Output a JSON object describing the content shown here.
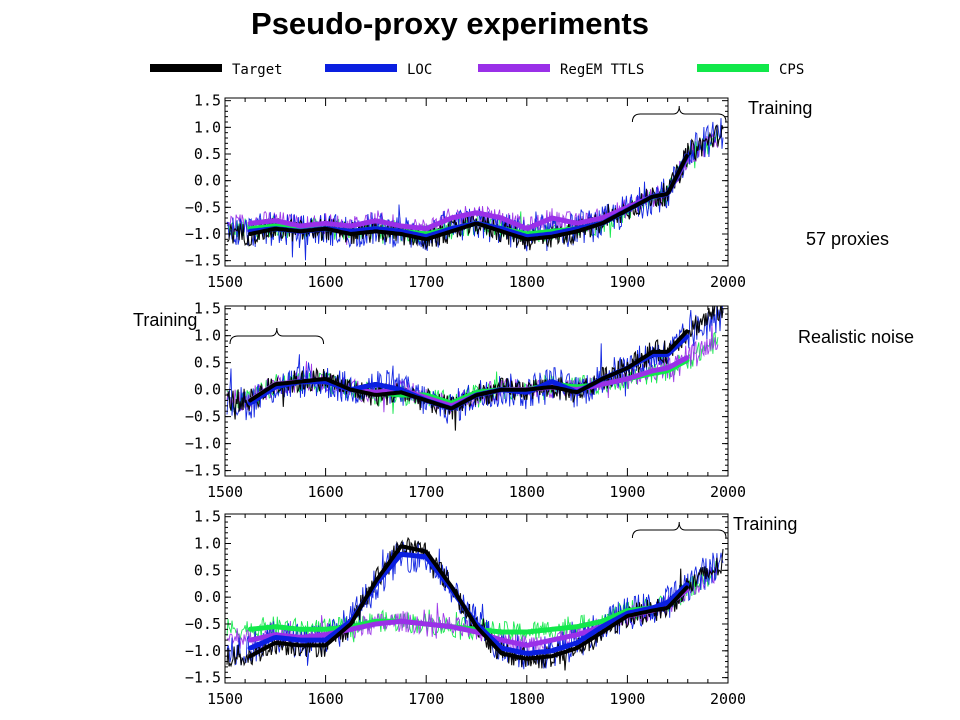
{
  "title": "Pseudo-proxy experiments",
  "annotations": {
    "training_top": "Training",
    "proxies": "57 proxies",
    "training_middle": "Training",
    "noise": "Realistic noise",
    "training_bottom": "Training"
  },
  "legend": [
    {
      "label": "Target",
      "color": "#000000"
    },
    {
      "label": "LOC",
      "color": "#0a1fe0"
    },
    {
      "label": "RegEM TTLS",
      "color": "#9a30e8"
    },
    {
      "label": "CPS",
      "color": "#11e84a"
    }
  ],
  "chart_data": [
    {
      "type": "line",
      "panel": "top",
      "xlim": [
        1500,
        2000
      ],
      "ylim": [
        -1.6,
        1.55
      ],
      "x_ticks": [
        "1500",
        "1600",
        "1700",
        "1800",
        "1900",
        "2000"
      ],
      "y_ticks": [
        "1.5",
        "1.0",
        "0.5",
        "0.0",
        "-0.5",
        "-1.0",
        "-1.5"
      ],
      "training_period": [
        1900,
        2000
      ],
      "series": [
        {
          "name": "Target",
          "x": [
            1525,
            1550,
            1575,
            1600,
            1625,
            1650,
            1675,
            1700,
            1725,
            1750,
            1775,
            1800,
            1825,
            1850,
            1875,
            1900,
            1925,
            1940,
            1960
          ],
          "values": [
            -1.0,
            -0.9,
            -0.95,
            -0.9,
            -1.0,
            -0.95,
            -1.0,
            -1.1,
            -0.95,
            -0.8,
            -0.95,
            -1.1,
            -1.05,
            -0.95,
            -0.8,
            -0.55,
            -0.3,
            -0.25,
            0.5
          ]
        },
        {
          "name": "LOC",
          "x": [
            1525,
            1550,
            1575,
            1600,
            1625,
            1650,
            1675,
            1700,
            1725,
            1750,
            1775,
            1800,
            1825,
            1850,
            1875,
            1900,
            1925,
            1940,
            1960
          ],
          "values": [
            -0.95,
            -0.9,
            -0.95,
            -0.9,
            -0.95,
            -0.9,
            -0.95,
            -1.05,
            -0.9,
            -0.8,
            -0.9,
            -1.05,
            -1.0,
            -0.9,
            -0.8,
            -0.55,
            -0.3,
            -0.25,
            0.5
          ]
        },
        {
          "name": "RegEM TTLS",
          "x": [
            1525,
            1550,
            1575,
            1600,
            1625,
            1650,
            1675,
            1700,
            1725,
            1750,
            1775,
            1800,
            1825,
            1850,
            1875,
            1900,
            1925,
            1940,
            1960
          ],
          "values": [
            -0.8,
            -0.75,
            -0.85,
            -0.8,
            -0.85,
            -0.75,
            -0.85,
            -0.9,
            -0.7,
            -0.6,
            -0.7,
            -0.9,
            -0.7,
            -0.8,
            -0.7,
            -0.5,
            -0.3,
            -0.25,
            0.45
          ]
        },
        {
          "name": "CPS",
          "x": [
            1525,
            1550,
            1575,
            1600,
            1625,
            1650,
            1675,
            1700,
            1725,
            1750,
            1775,
            1800,
            1825,
            1850,
            1875,
            1900,
            1925,
            1940,
            1960
          ],
          "values": [
            -0.9,
            -0.85,
            -0.9,
            -0.9,
            -0.95,
            -0.9,
            -0.95,
            -1.0,
            -0.9,
            -0.8,
            -0.9,
            -1.0,
            -0.95,
            -0.9,
            -0.8,
            -0.55,
            -0.3,
            -0.25,
            0.45
          ]
        }
      ]
    },
    {
      "type": "line",
      "panel": "middle",
      "xlim": [
        1500,
        2000
      ],
      "ylim": [
        -1.6,
        1.55
      ],
      "x_ticks": [
        "1500",
        "1600",
        "1700",
        "1800",
        "1900",
        "2000"
      ],
      "y_ticks": [
        "1.5",
        "1.0",
        "0.5",
        "0.0",
        "-0.5",
        "-1.0",
        "-1.5"
      ],
      "training_period": [
        1500,
        1600
      ],
      "series": [
        {
          "name": "Target",
          "x": [
            1525,
            1550,
            1575,
            1600,
            1625,
            1650,
            1675,
            1700,
            1725,
            1750,
            1775,
            1800,
            1825,
            1850,
            1875,
            1900,
            1925,
            1940,
            1960
          ],
          "values": [
            -0.2,
            0.1,
            0.15,
            0.2,
            0.0,
            -0.1,
            -0.05,
            -0.2,
            -0.35,
            -0.1,
            0.0,
            0.0,
            0.05,
            -0.05,
            0.2,
            0.4,
            0.7,
            0.7,
            1.1
          ]
        },
        {
          "name": "LOC",
          "x": [
            1525,
            1550,
            1575,
            1600,
            1625,
            1650,
            1675,
            1700,
            1725,
            1750,
            1775,
            1800,
            1825,
            1850,
            1875,
            1900,
            1925,
            1940,
            1960
          ],
          "values": [
            -0.25,
            0.05,
            0.15,
            0.15,
            0.0,
            0.1,
            0.0,
            -0.2,
            -0.35,
            -0.1,
            0.0,
            -0.05,
            0.15,
            -0.05,
            0.2,
            0.4,
            0.65,
            0.65,
            1.0
          ]
        },
        {
          "name": "RegEM TTLS",
          "x": [
            1525,
            1550,
            1575,
            1600,
            1625,
            1650,
            1675,
            1700,
            1725,
            1750,
            1775,
            1800,
            1825,
            1850,
            1875,
            1900,
            1925,
            1940,
            1960
          ],
          "values": [
            -0.2,
            0.1,
            0.15,
            0.15,
            0.0,
            -0.05,
            0.0,
            -0.15,
            -0.3,
            -0.1,
            0.0,
            0.0,
            0.05,
            0.0,
            0.1,
            0.2,
            0.35,
            0.4,
            0.6
          ]
        },
        {
          "name": "CPS",
          "x": [
            1525,
            1550,
            1575,
            1600,
            1625,
            1650,
            1675,
            1700,
            1725,
            1750,
            1775,
            1800,
            1825,
            1850,
            1875,
            1900,
            1925,
            1940,
            1960
          ],
          "values": [
            -0.2,
            0.1,
            0.15,
            0.15,
            0.0,
            -0.05,
            -0.1,
            -0.1,
            -0.25,
            -0.05,
            0.0,
            0.0,
            0.1,
            0.05,
            0.1,
            0.2,
            0.3,
            0.35,
            0.55
          ]
        }
      ]
    },
    {
      "type": "line",
      "panel": "bottom",
      "xlim": [
        1500,
        2000
      ],
      "ylim": [
        -1.6,
        1.55
      ],
      "x_ticks": [
        "1500",
        "1600",
        "1700",
        "1800",
        "1900",
        "2000"
      ],
      "y_ticks": [
        "1.5",
        "1.0",
        "0.5",
        "0.0",
        "-0.5",
        "-1.0",
        "-1.5"
      ],
      "training_period": [
        1900,
        2000
      ],
      "series": [
        {
          "name": "Target",
          "x": [
            1525,
            1550,
            1575,
            1600,
            1625,
            1650,
            1675,
            1700,
            1725,
            1750,
            1775,
            1800,
            1825,
            1850,
            1875,
            1900,
            1925,
            1940,
            1960
          ],
          "values": [
            -1.1,
            -0.85,
            -0.9,
            -0.9,
            -0.5,
            0.3,
            0.95,
            0.85,
            0.2,
            -0.55,
            -1.05,
            -1.15,
            -1.1,
            -0.95,
            -0.65,
            -0.35,
            -0.25,
            -0.2,
            0.2
          ]
        },
        {
          "name": "LOC",
          "x": [
            1525,
            1550,
            1575,
            1600,
            1625,
            1650,
            1675,
            1700,
            1725,
            1750,
            1775,
            1800,
            1825,
            1850,
            1875,
            1900,
            1925,
            1940,
            1960
          ],
          "values": [
            -0.95,
            -0.75,
            -0.8,
            -0.8,
            -0.45,
            0.25,
            0.8,
            0.75,
            0.15,
            -0.5,
            -0.95,
            -1.05,
            -1.0,
            -0.85,
            -0.55,
            -0.3,
            -0.2,
            -0.1,
            0.25
          ]
        },
        {
          "name": "RegEM TTLS",
          "x": [
            1525,
            1550,
            1575,
            1600,
            1625,
            1650,
            1675,
            1700,
            1725,
            1750,
            1775,
            1800,
            1825,
            1850,
            1875,
            1900,
            1925,
            1940,
            1960
          ],
          "values": [
            -0.8,
            -0.7,
            -0.75,
            -0.7,
            -0.6,
            -0.5,
            -0.45,
            -0.5,
            -0.55,
            -0.65,
            -0.8,
            -0.9,
            -0.8,
            -0.7,
            -0.55,
            -0.35,
            -0.25,
            -0.15,
            0.15
          ]
        },
        {
          "name": "CPS",
          "x": [
            1525,
            1550,
            1575,
            1600,
            1625,
            1650,
            1675,
            1700,
            1725,
            1750,
            1775,
            1800,
            1825,
            1850,
            1875,
            1900,
            1925,
            1940,
            1960
          ],
          "values": [
            -0.6,
            -0.55,
            -0.6,
            -0.6,
            -0.55,
            -0.45,
            -0.45,
            -0.5,
            -0.55,
            -0.6,
            -0.65,
            -0.65,
            -0.6,
            -0.55,
            -0.45,
            -0.25,
            -0.2,
            -0.15,
            0.15
          ]
        }
      ]
    }
  ]
}
